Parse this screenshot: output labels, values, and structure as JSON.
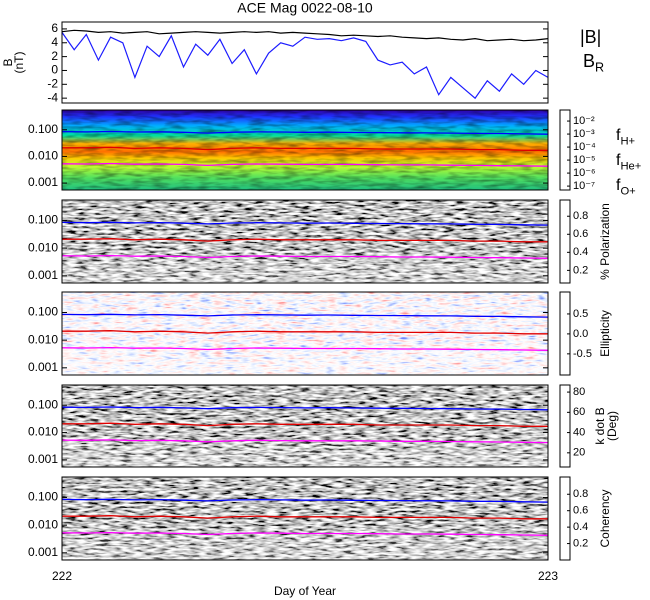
{
  "title": "ACE Mag 0022-08-10",
  "x_axis": {
    "label": "Day of Year",
    "xlim": [
      222,
      223
    ],
    "xticks": [
      222,
      223
    ]
  },
  "chart_data": [
    {
      "type": "line",
      "ylabel": [
        "B",
        "(nT)"
      ],
      "ylim": [
        -4.7,
        7.0
      ],
      "yticks": [
        6,
        4,
        2,
        0,
        -2,
        -4
      ],
      "x": [
        222,
        222.025,
        222.05,
        222.075,
        222.1,
        222.125,
        222.15,
        222.175,
        222.2,
        222.225,
        222.25,
        222.275,
        222.3,
        222.325,
        222.35,
        222.375,
        222.4,
        222.425,
        222.45,
        222.475,
        222.5,
        222.525,
        222.55,
        222.575,
        222.6,
        222.625,
        222.65,
        222.675,
        222.7,
        222.725,
        222.75,
        222.775,
        222.8,
        222.825,
        222.85,
        222.875,
        222.9,
        222.925,
        222.95,
        222.975,
        223
      ],
      "series": [
        {
          "name": {
            "text": "|B|"
          },
          "color": "#000000",
          "values": [
            5.6,
            5.8,
            5.7,
            5.5,
            5.6,
            5.4,
            5.5,
            5.6,
            5.3,
            5.4,
            5.5,
            5.6,
            5.5,
            5.4,
            5.5,
            5.6,
            5.5,
            5.6,
            5.4,
            5.5,
            5.4,
            5.3,
            5.2,
            5.0,
            5.1,
            5.0,
            4.9,
            5.0,
            4.8,
            4.7,
            4.6,
            4.7,
            4.5,
            4.4,
            4.6,
            4.3,
            4.4,
            4.5,
            4.3,
            4.4,
            4.6
          ]
        },
        {
          "name": {
            "text": "B",
            "sub": "R"
          },
          "color": "#1c1cff",
          "values": [
            5.5,
            3.0,
            5.2,
            1.5,
            4.8,
            4.0,
            -1.0,
            3.5,
            2.0,
            5.0,
            0.5,
            3.8,
            2.2,
            4.5,
            1.0,
            3.0,
            -0.5,
            2.5,
            4.0,
            3.5,
            4.8,
            4.5,
            4.6,
            4.3,
            4.7,
            4.2,
            1.5,
            0.8,
            1.2,
            -0.5,
            0.5,
            -3.5,
            -1.0,
            -2.5,
            -4.0,
            -1.5,
            -3.0,
            -0.5,
            -2.0,
            0.0,
            -1.0
          ]
        }
      ]
    },
    {
      "type": "spectrogram",
      "colormap": "rainbow",
      "log": true,
      "ylim": [
        0.00055,
        0.55
      ],
      "yticks": [
        {
          "value": 0.1,
          "label": "0.100"
        },
        {
          "value": 0.01,
          "label": "0.010"
        },
        {
          "value": 0.001,
          "label": "0.001"
        }
      ],
      "x": [
        222,
        222.05,
        222.1,
        222.15,
        222.2,
        222.25,
        222.3,
        222.35,
        222.4,
        222.45,
        222.5,
        222.55,
        222.6,
        222.65,
        222.7,
        222.75,
        222.8,
        222.85,
        222.9,
        222.95,
        223
      ],
      "series": [
        {
          "name": {
            "text": "f",
            "sub": "H+"
          },
          "color": "#0000ff",
          "values": [
            0.085,
            0.083,
            0.086,
            0.082,
            0.084,
            0.08,
            0.075,
            0.081,
            0.083,
            0.082,
            0.08,
            0.081,
            0.079,
            0.078,
            0.077,
            0.076,
            0.075,
            0.073,
            0.072,
            0.07,
            0.068
          ]
        },
        {
          "name": {
            "text": "f",
            "sub": "He+"
          },
          "color": "#e00000",
          "values": [
            0.021,
            0.021,
            0.022,
            0.02,
            0.021,
            0.02,
            0.018,
            0.02,
            0.021,
            0.02,
            0.02,
            0.02,
            0.02,
            0.019,
            0.019,
            0.019,
            0.019,
            0.018,
            0.018,
            0.017,
            0.017
          ]
        },
        {
          "name": {
            "text": "f",
            "sub": "O+"
          },
          "color": "#ff00ff",
          "values": [
            0.0053,
            0.0052,
            0.0054,
            0.0051,
            0.0052,
            0.005,
            0.0046,
            0.005,
            0.0052,
            0.0051,
            0.005,
            0.005,
            0.005,
            0.0049,
            0.0048,
            0.0048,
            0.0047,
            0.0046,
            0.0045,
            0.0044,
            0.0043
          ]
        }
      ],
      "colorbar": {
        "lim": [
          -7.3,
          -1.15
        ],
        "ticks": [
          {
            "value": -2,
            "label": "10⁻²"
          },
          {
            "value": -3,
            "label": "10⁻³"
          },
          {
            "value": -4,
            "label": "10⁻⁴"
          },
          {
            "value": -5,
            "label": "10⁻⁵"
          },
          {
            "value": -6,
            "label": "10⁻⁶"
          },
          {
            "value": -7,
            "label": "10⁻⁷"
          }
        ]
      }
    },
    {
      "type": "spectrogram",
      "colormap": "gray",
      "log": true,
      "ylim": [
        0.00055,
        0.55
      ],
      "yticks": [
        {
          "value": 0.1,
          "label": "0.100"
        },
        {
          "value": 0.01,
          "label": "0.010"
        },
        {
          "value": 0.001,
          "label": "0.001"
        }
      ],
      "colorbar": {
        "title": [
          "% Polarization"
        ],
        "lim": [
          0.06,
          0.98
        ],
        "ticks": [
          0.8,
          0.6,
          0.4,
          0.2
        ]
      }
    },
    {
      "type": "spectrogram",
      "colormap": "bwr",
      "log": true,
      "ylim": [
        0.00055,
        0.55
      ],
      "yticks": [
        {
          "value": 0.1,
          "label": "0.100"
        },
        {
          "value": 0.01,
          "label": "0.010"
        },
        {
          "value": 0.001,
          "label": "0.001"
        }
      ],
      "colorbar": {
        "title": [
          "Ellipticity"
        ],
        "lim": [
          -1.03,
          1.05
        ],
        "ticks": [
          0.5,
          {
            "value": 0,
            "label": "0.0"
          },
          -0.5
        ]
      }
    },
    {
      "type": "spectrogram",
      "colormap": "gray",
      "log": true,
      "ylim": [
        0.00055,
        0.55
      ],
      "yticks": [
        {
          "value": 0.1,
          "label": "0.100"
        },
        {
          "value": 0.01,
          "label": "0.010"
        },
        {
          "value": 0.001,
          "label": "0.001"
        }
      ],
      "colorbar": {
        "title": [
          "k dot B",
          "(Deg)"
        ],
        "lim": [
          6,
          87
        ],
        "ticks": [
          80,
          60,
          40,
          20
        ]
      }
    },
    {
      "type": "spectrogram",
      "colormap": "gray",
      "log": true,
      "ylim": [
        0.00055,
        0.55
      ],
      "yticks": [
        {
          "value": 0.1,
          "label": "0.100"
        },
        {
          "value": 0.01,
          "label": "0.010"
        },
        {
          "value": 0.001,
          "label": "0.001"
        }
      ],
      "colorbar": {
        "title": [
          "Coherency"
        ],
        "lim": [
          0.0,
          1.01
        ],
        "ticks": [
          0.8,
          0.6,
          0.4,
          0.2
        ]
      }
    }
  ]
}
